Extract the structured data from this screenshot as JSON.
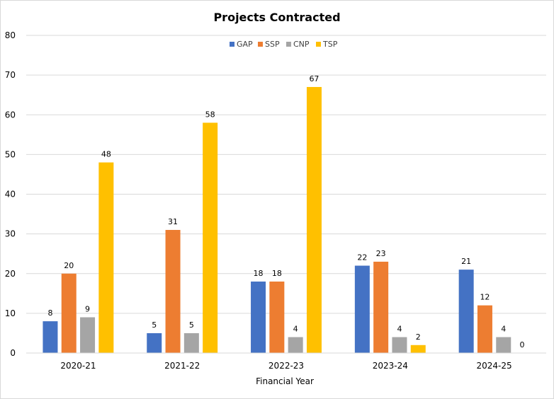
{
  "chart_data": {
    "type": "bar",
    "title": "Projects Contracted",
    "xlabel": "Financial Year",
    "ylabel": "",
    "ylim": [
      0,
      80
    ],
    "yticks": [
      0,
      10,
      20,
      30,
      40,
      50,
      60,
      70,
      80
    ],
    "grid": true,
    "legend_position": "top",
    "categories": [
      "2020-21",
      "2021-22",
      "2022-23",
      "2023-24",
      "2024-25"
    ],
    "series": [
      {
        "name": "GAP",
        "color": "#4472C4",
        "values": [
          8,
          5,
          18,
          22,
          21
        ]
      },
      {
        "name": "SSP",
        "color": "#ED7D31",
        "values": [
          20,
          31,
          18,
          23,
          12
        ]
      },
      {
        "name": "CNP",
        "color": "#A5A5A5",
        "values": [
          9,
          5,
          4,
          4,
          4
        ]
      },
      {
        "name": "TSP",
        "color": "#FFC000",
        "values": [
          48,
          58,
          67,
          2,
          0
        ]
      }
    ]
  }
}
